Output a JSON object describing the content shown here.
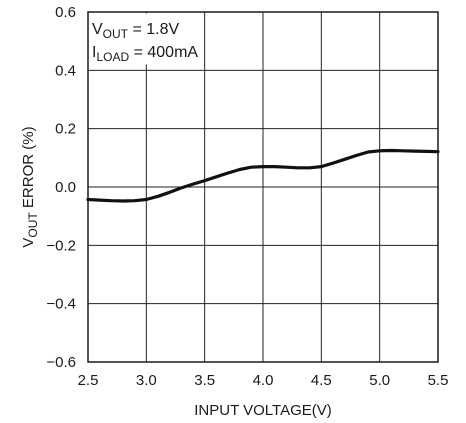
{
  "chart_data": {
    "type": "line",
    "title": "",
    "xlabel": "INPUT VOLTAGE(V)",
    "ylabel": {
      "main": "V",
      "sub": "OUT",
      "rest": " ERROR (%)"
    },
    "xlim": [
      2.5,
      5.5
    ],
    "ylim": [
      -0.6,
      0.6
    ],
    "xticks": [
      "2.5",
      "3.0",
      "3.5",
      "4.0",
      "4.5",
      "5.0",
      "5.5"
    ],
    "yticks": [
      "0.6",
      "0.4",
      "0.2",
      "0.0",
      "−0.2",
      "−0.4",
      "−0.6"
    ],
    "grid": true,
    "annotations": [
      {
        "main": "V",
        "sub": "OUT",
        "rest": " = 1.8V"
      },
      {
        "main": "I",
        "sub": "LOAD",
        "rest": " = 400mA"
      }
    ],
    "series": [
      {
        "x": [
          2.5,
          2.6,
          2.7,
          2.8,
          2.9,
          3.0,
          3.1,
          3.2,
          3.3,
          3.4,
          3.5,
          3.6,
          3.7,
          3.8,
          3.9,
          4.0,
          4.1,
          4.2,
          4.3,
          4.4,
          4.5,
          4.6,
          4.7,
          4.8,
          4.9,
          5.0,
          5.1,
          5.2,
          5.3,
          5.4,
          5.5
        ],
        "y": [
          -0.043,
          -0.045,
          -0.047,
          -0.048,
          -0.047,
          -0.043,
          -0.032,
          -0.018,
          -0.003,
          0.01,
          0.022,
          0.035,
          0.048,
          0.06,
          0.068,
          0.07,
          0.07,
          0.068,
          0.066,
          0.066,
          0.07,
          0.082,
          0.095,
          0.108,
          0.12,
          0.124,
          0.125,
          0.124,
          0.123,
          0.122,
          0.121
        ]
      }
    ]
  }
}
